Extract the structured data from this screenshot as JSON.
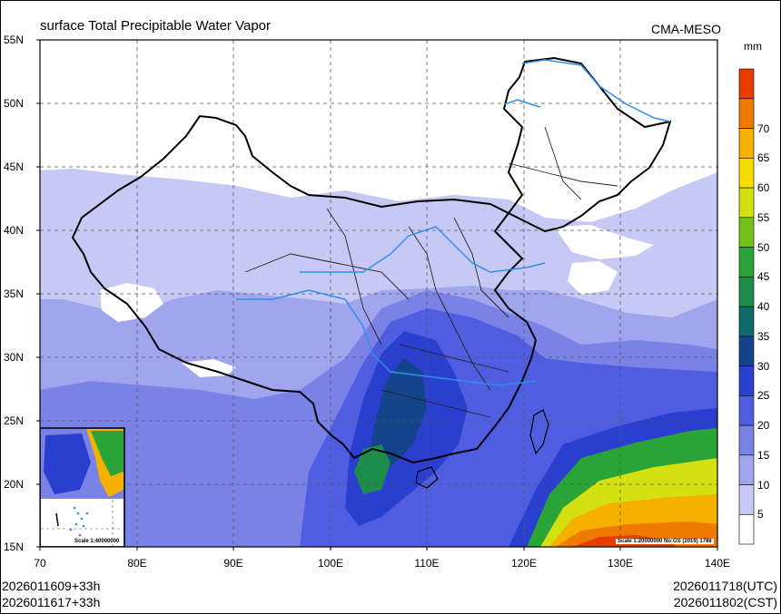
{
  "header": {
    "title": "surface Total Precipitable Water Vapor",
    "model": "CMA-MESO"
  },
  "axes": {
    "lat_labels": [
      "55N",
      "50N",
      "45N",
      "40N",
      "35N",
      "30N",
      "25N",
      "20N",
      "15N"
    ],
    "lon_labels": [
      "70",
      "80E",
      "90E",
      "100E",
      "110E",
      "120E",
      "130E",
      "140E"
    ]
  },
  "colorbar": {
    "unit": "mm",
    "levels": [
      "5",
      "10",
      "15",
      "20",
      "25",
      "30",
      "35",
      "40",
      "45",
      "50",
      "55",
      "60",
      "65",
      "70"
    ],
    "colors": [
      "#ffffff",
      "#c7c9f5",
      "#a0a5ee",
      "#7a82e6",
      "#4f5ee0",
      "#2a3fcf",
      "#14458a",
      "#106a6a",
      "#1e8c4a",
      "#2aa436",
      "#73c21a",
      "#d4e010",
      "#f8dc00",
      "#f5b000",
      "#ee7a00",
      "#e63c00"
    ]
  },
  "scales": {
    "main": "Scale 1:20000000 No:GS (2019) 1786",
    "inset": "Scale 1:40000000"
  },
  "footer": {
    "init_utc": "2026011609+33h",
    "init_cst": "2026011617+33h",
    "valid_utc": "2026011718(UTC)",
    "valid_cst": "2026011802(CST)"
  }
}
